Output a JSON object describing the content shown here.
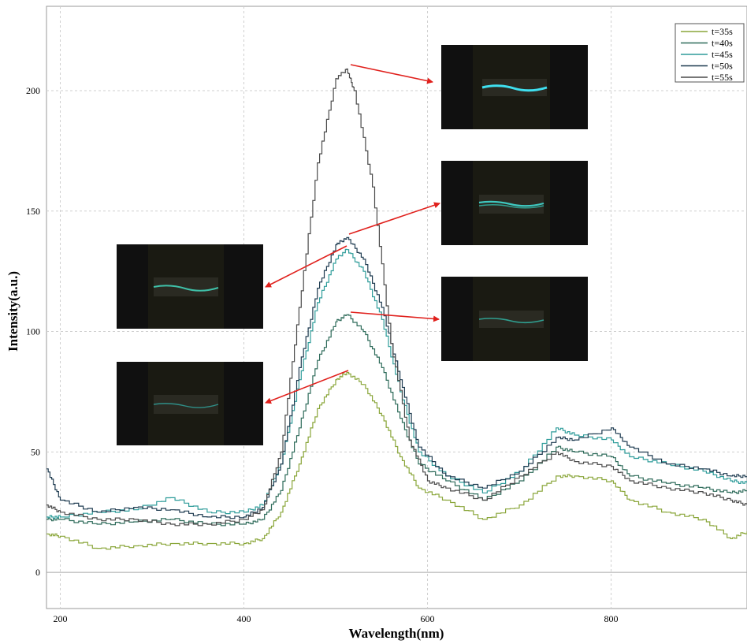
{
  "chart_data": {
    "type": "line",
    "title": "",
    "xlabel": "Wavelength(nm)",
    "ylabel": "Intensity(a.u.)",
    "xlim": [
      185,
      948
    ],
    "ylim": [
      -15,
      235
    ],
    "x_ticks": [
      200,
      400,
      600,
      800
    ],
    "y_ticks": [
      0,
      50,
      100,
      150,
      200
    ],
    "grid": true,
    "legend_position": "top-right",
    "series": [
      {
        "name": "t=35s",
        "color": "#8aa63a",
        "x": [
          185,
          200,
          240,
          280,
          320,
          360,
          400,
          420,
          440,
          460,
          480,
          500,
          512,
          530,
          550,
          570,
          590,
          620,
          660,
          700,
          740,
          760,
          800,
          820,
          860,
          900,
          930,
          948
        ],
        "y": [
          16,
          15,
          10,
          11,
          12,
          12,
          12,
          14,
          25,
          45,
          68,
          80,
          83,
          78,
          65,
          48,
          35,
          30,
          22,
          28,
          40,
          40,
          38,
          30,
          25,
          22,
          14,
          17
        ]
      },
      {
        "name": "t=40s",
        "color": "#2e6b5a",
        "x": [
          185,
          200,
          240,
          280,
          320,
          360,
          400,
          420,
          440,
          460,
          480,
          500,
          512,
          530,
          550,
          570,
          590,
          620,
          660,
          700,
          740,
          760,
          800,
          820,
          860,
          900,
          930,
          948
        ],
        "y": [
          22,
          22,
          20,
          21,
          22,
          20,
          20,
          22,
          34,
          60,
          88,
          104,
          107,
          100,
          85,
          64,
          45,
          38,
          30,
          38,
          52,
          50,
          48,
          40,
          37,
          35,
          33,
          34
        ]
      },
      {
        "name": "t=45s",
        "color": "#2e9c9a",
        "x": [
          185,
          200,
          240,
          280,
          320,
          360,
          400,
          420,
          440,
          460,
          480,
          500,
          512,
          530,
          550,
          570,
          590,
          620,
          660,
          700,
          740,
          760,
          800,
          820,
          860,
          900,
          930,
          948
        ],
        "y": [
          23,
          23,
          25,
          26,
          31,
          25,
          25,
          28,
          45,
          80,
          112,
          130,
          134,
          125,
          105,
          75,
          50,
          40,
          33,
          42,
          60,
          57,
          55,
          48,
          45,
          42,
          38,
          37
        ]
      },
      {
        "name": "t=50s",
        "color": "#1e3b50",
        "x": [
          185,
          200,
          240,
          280,
          320,
          360,
          400,
          420,
          440,
          460,
          480,
          500,
          512,
          530,
          550,
          570,
          590,
          620,
          660,
          700,
          740,
          760,
          800,
          820,
          860,
          900,
          930,
          948
        ],
        "y": [
          43,
          30,
          25,
          27,
          26,
          23,
          23,
          27,
          45,
          85,
          118,
          136,
          139,
          130,
          110,
          80,
          52,
          40,
          35,
          42,
          56,
          55,
          60,
          52,
          45,
          43,
          40,
          40
        ]
      },
      {
        "name": "t=55s",
        "color": "#4a4a4a",
        "x": [
          185,
          200,
          240,
          280,
          320,
          360,
          400,
          420,
          440,
          460,
          480,
          500,
          512,
          520,
          540,
          560,
          580,
          600,
          620,
          660,
          700,
          740,
          760,
          800,
          820,
          860,
          900,
          930,
          948
        ],
        "y": [
          28,
          25,
          22,
          22,
          20,
          20,
          22,
          26,
          50,
          110,
          170,
          205,
          209,
          200,
          160,
          95,
          55,
          38,
          35,
          30,
          40,
          50,
          46,
          44,
          38,
          35,
          33,
          30,
          28
        ]
      }
    ]
  }
}
